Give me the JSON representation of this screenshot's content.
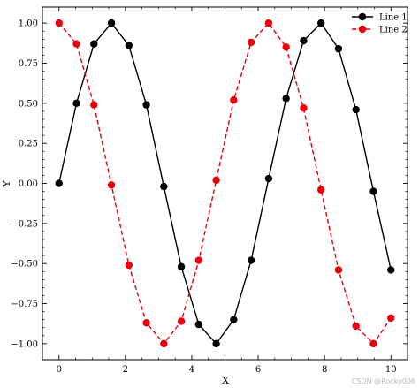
{
  "chart_data": {
    "type": "line",
    "title": "",
    "xlabel": "X",
    "ylabel": "Y",
    "xlim": [
      -0.5,
      10.5
    ],
    "ylim": [
      -1.1,
      1.1
    ],
    "xticks": [
      0,
      2,
      4,
      6,
      8,
      10
    ],
    "xtick_labels": [
      "0",
      "2",
      "4",
      "6",
      "8",
      "10"
    ],
    "yticks": [
      -1.0,
      -0.75,
      -0.5,
      -0.25,
      0.0,
      0.25,
      0.5,
      0.75,
      1.0
    ],
    "ytick_labels": [
      "−1.00",
      "−0.75",
      "−0.50",
      "−0.25",
      "0.00",
      "0.25",
      "0.50",
      "0.75",
      "1.00"
    ],
    "grid": false,
    "legend_position": "top-right",
    "series": [
      {
        "name": "Line 1",
        "color": "#000000",
        "linestyle": "solid",
        "marker": "circle",
        "x": [
          0,
          0.526,
          1.053,
          1.579,
          2.105,
          2.632,
          3.158,
          3.684,
          4.211,
          4.737,
          5.263,
          5.789,
          6.316,
          6.842,
          7.368,
          7.895,
          8.421,
          8.947,
          9.474,
          10.0
        ],
        "y": [
          0.0,
          0.5,
          0.87,
          1.0,
          0.86,
          0.49,
          -0.02,
          -0.52,
          -0.88,
          -1.0,
          -0.85,
          -0.48,
          0.03,
          0.53,
          0.89,
          1.0,
          0.84,
          0.46,
          -0.05,
          -0.54
        ]
      },
      {
        "name": "Line 2",
        "color": "#e8000b",
        "linestyle": "dashed",
        "marker": "circle",
        "x": [
          0,
          0.526,
          1.053,
          1.579,
          2.105,
          2.632,
          3.158,
          3.684,
          4.211,
          4.737,
          5.263,
          5.789,
          6.316,
          6.842,
          7.368,
          7.895,
          8.421,
          8.947,
          9.474,
          10.0
        ],
        "y": [
          1.0,
          0.87,
          0.49,
          -0.01,
          -0.51,
          -0.87,
          -1.0,
          -0.86,
          -0.48,
          0.02,
          0.52,
          0.88,
          1.0,
          0.85,
          0.47,
          -0.04,
          -0.54,
          -0.89,
          -1.0,
          -0.84
        ]
      }
    ]
  },
  "watermark": "CSDN @Rocky006"
}
